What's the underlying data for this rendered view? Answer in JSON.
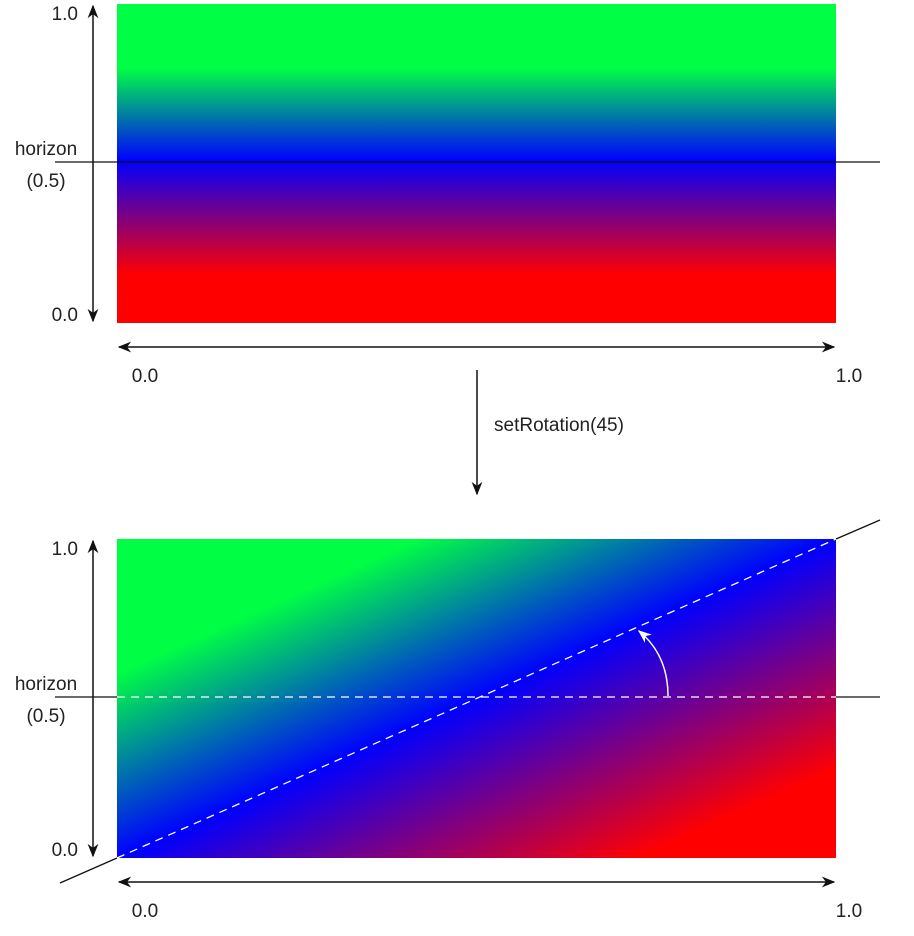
{
  "top_panel": {
    "y_top": "1.0",
    "y_bottom": "0.0",
    "horizon_label": "horizon",
    "horizon_value": "(0.5)",
    "x_left": "0.0",
    "x_right": "1.0"
  },
  "transition": "setRotation(45)",
  "bottom_panel": {
    "y_top": "1.0",
    "y_bottom": "0.0",
    "horizon_label": "horizon",
    "horizon_value": "(0.5)",
    "x_left": "0.0",
    "x_right": "1.0"
  }
}
